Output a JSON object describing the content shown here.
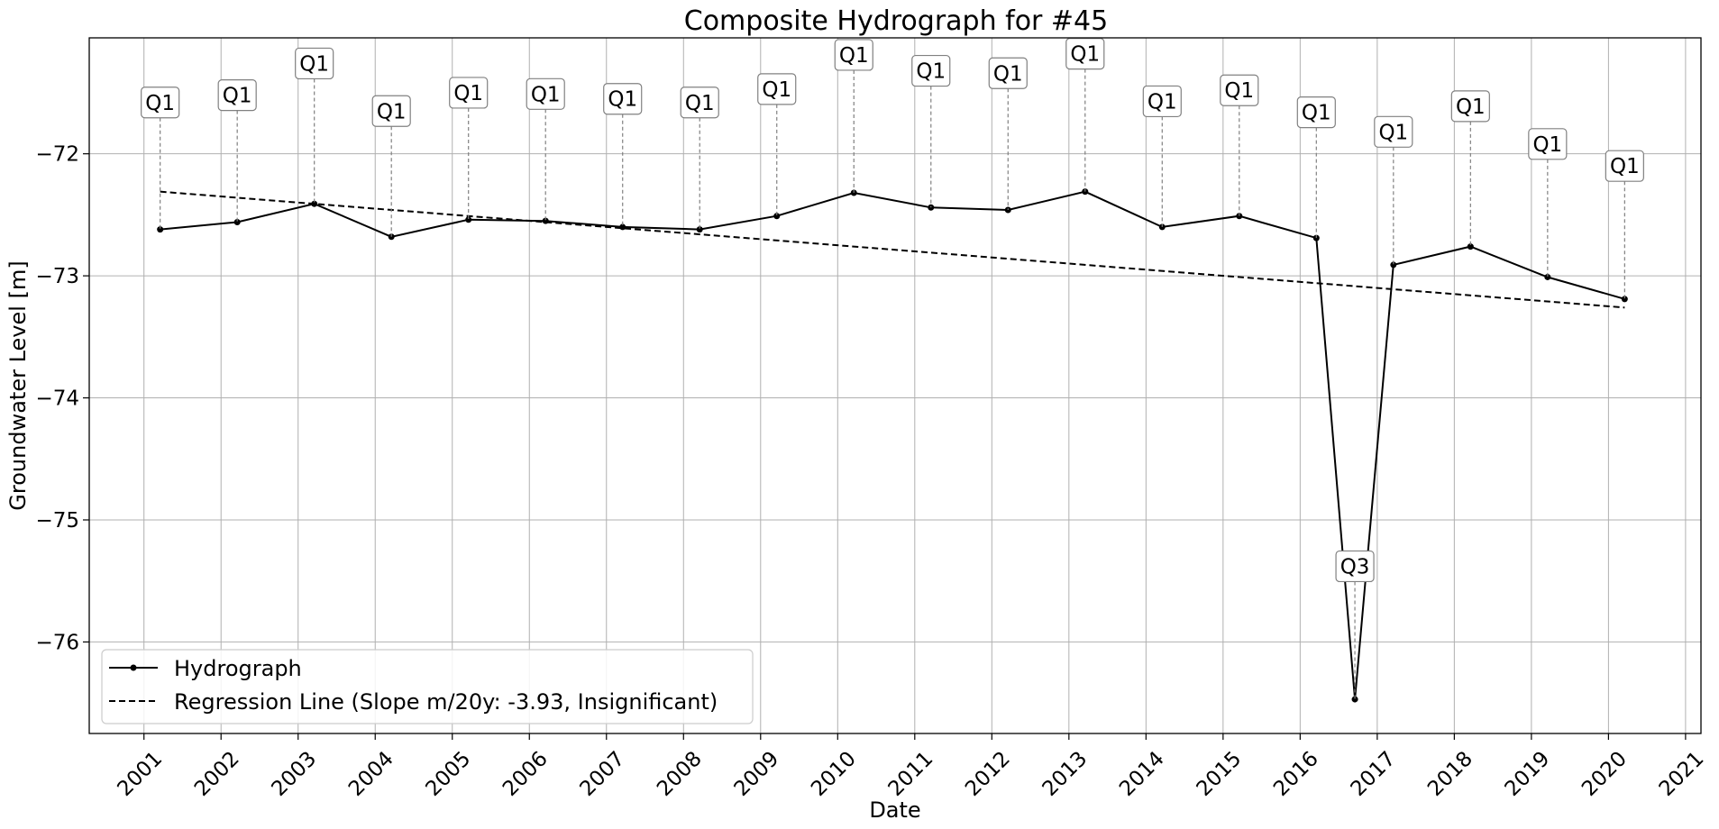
{
  "chart_data": {
    "type": "line",
    "title": "Composite Hydrograph for  #45",
    "xlabel": "Date",
    "ylabel": "Groundwater Level [m]",
    "x_ticks": [
      "2001",
      "2002",
      "2003",
      "2004",
      "2005",
      "2006",
      "2007",
      "2008",
      "2009",
      "2010",
      "2011",
      "2012",
      "2013",
      "2014",
      "2015",
      "2016",
      "2017",
      "2018",
      "2019",
      "2020",
      "2021"
    ],
    "y_ticks": [
      -72,
      -73,
      -74,
      -75,
      -76
    ],
    "y_tick_labels": [
      "−72",
      "−73",
      "−74",
      "−75",
      "−76"
    ],
    "xlim": [
      2000.29,
      2021.2
    ],
    "ylim": [
      -76.75,
      -71.05
    ],
    "grid": true,
    "legend_position": "lower-left",
    "series": [
      {
        "name": "Hydrograph",
        "color": "#000000",
        "style": "solid-with-dots",
        "x": [
          2001.21,
          2002.21,
          2003.21,
          2004.21,
          2005.21,
          2006.21,
          2007.21,
          2008.21,
          2009.21,
          2010.21,
          2011.21,
          2012.21,
          2013.21,
          2014.21,
          2015.21,
          2016.21,
          2016.71,
          2017.21,
          2018.21,
          2019.21,
          2020.21
        ],
        "values": [
          -72.62,
          -72.56,
          -72.41,
          -72.68,
          -72.54,
          -72.55,
          -72.6,
          -72.62,
          -72.51,
          -72.32,
          -72.44,
          -72.46,
          -72.31,
          -72.6,
          -72.51,
          -72.69,
          -76.47,
          -72.91,
          -72.76,
          -73.01,
          -73.19
        ],
        "quarter_labels": [
          "Q1",
          "Q1",
          "Q1",
          "Q1",
          "Q1",
          "Q1",
          "Q1",
          "Q1",
          "Q1",
          "Q1",
          "Q1",
          "Q1",
          "Q1",
          "Q1",
          "Q1",
          "Q1",
          "Q3",
          "Q1",
          "Q1",
          "Q1",
          "Q1"
        ],
        "label_levels": [
          -71.58,
          -71.52,
          -71.26,
          -71.65,
          -71.5,
          -71.51,
          -71.55,
          -71.58,
          -71.47,
          -71.19,
          -71.32,
          -71.34,
          -71.18,
          -71.57,
          -71.48,
          -71.66,
          -75.38,
          -71.82,
          -71.61,
          -71.92,
          -72.1
        ]
      },
      {
        "name": "Regression Line (Slope m/20y: -3.93, Insignificant)",
        "color": "#000000",
        "style": "dashed",
        "x": [
          2001.21,
          2020.21
        ],
        "values": [
          -72.31,
          -73.26
        ]
      }
    ]
  }
}
